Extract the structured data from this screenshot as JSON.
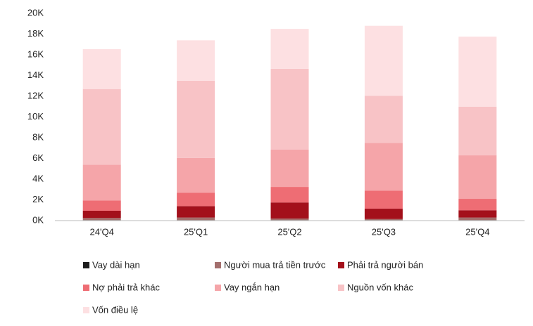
{
  "chart_data": {
    "type": "stacked_bar",
    "categories": [
      "24'Q4",
      "25'Q1",
      "25'Q2",
      "25'Q3",
      "25'Q4"
    ],
    "series": [
      {
        "name": "Vay dài hạn",
        "color": "#1c1c1c",
        "values": [
          50,
          50,
          50,
          50,
          50
        ]
      },
      {
        "name": "Người mua trả tiền trước",
        "color": "#a36f6d",
        "values": [
          200,
          250,
          150,
          100,
          250
        ]
      },
      {
        "name": "Phải trả người bán",
        "color": "#a3101b",
        "values": [
          700,
          1100,
          1550,
          1000,
          700
        ]
      },
      {
        "name": "Nợ phải trả khác",
        "color": "#ee6d74",
        "values": [
          1000,
          1300,
          1500,
          1750,
          1100
        ]
      },
      {
        "name": "Vay ngắn hạn",
        "color": "#f5a5a9",
        "values": [
          3450,
          3350,
          3600,
          4600,
          4200
        ]
      },
      {
        "name": "Nguồn vốn khác",
        "color": "#f8c3c6",
        "values": [
          7300,
          7450,
          7800,
          4550,
          4700
        ]
      },
      {
        "name": "Vốn điều lệ",
        "color": "#fde0e2",
        "values": [
          3850,
          3900,
          3850,
          6750,
          6750
        ]
      }
    ],
    "ylim": [
      0,
      20000
    ],
    "yticks": [
      {
        "value": 0,
        "label": "0K"
      },
      {
        "value": 2000,
        "label": "2K"
      },
      {
        "value": 4000,
        "label": "4K"
      },
      {
        "value": 6000,
        "label": "6K"
      },
      {
        "value": 8000,
        "label": "8K"
      },
      {
        "value": 10000,
        "label": "10K"
      },
      {
        "value": 12000,
        "label": "12K"
      },
      {
        "value": 14000,
        "label": "14K"
      },
      {
        "value": 16000,
        "label": "16K"
      },
      {
        "value": 18000,
        "label": "18K"
      },
      {
        "value": 20000,
        "label": "20K"
      }
    ],
    "grid": false
  }
}
